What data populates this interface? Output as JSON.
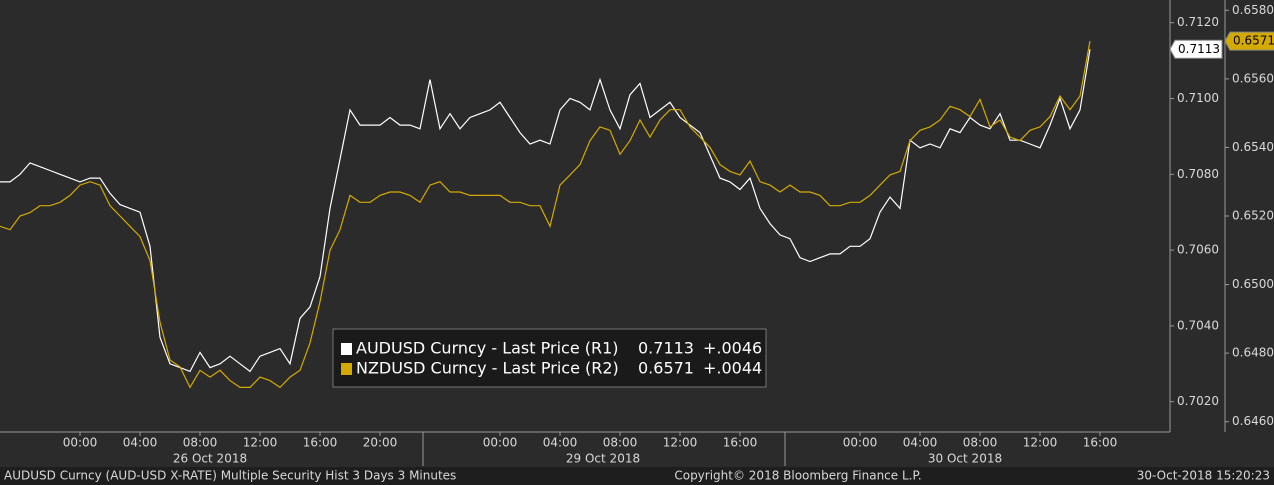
{
  "chart_data": {
    "type": "line",
    "categories": [
      null,
      null,
      null,
      null,
      null,
      null,
      null,
      null,
      "00:00",
      null,
      null,
      null,
      null,
      null,
      "04:00",
      null,
      null,
      null,
      null,
      null,
      "08:00",
      null,
      null,
      null,
      null,
      null,
      "12:00",
      null,
      null,
      null,
      null,
      null,
      "16:00",
      null,
      null,
      null,
      null,
      null,
      "20:00",
      null,
      null,
      null,
      null,
      null,
      null,
      null,
      null,
      null,
      null,
      null,
      "00:00",
      null,
      null,
      null,
      null,
      null,
      "04:00",
      null,
      null,
      null,
      null,
      null,
      "08:00",
      null,
      null,
      null,
      null,
      null,
      "12:00",
      null,
      null,
      null,
      null,
      null,
      "16:00",
      null,
      null,
      null,
      null,
      null,
      null,
      null,
      null,
      null,
      null,
      null,
      "00:00",
      null,
      null,
      null,
      null,
      null,
      "04:00",
      null,
      null,
      null,
      null,
      null,
      "08:00",
      null,
      null,
      null,
      null,
      null,
      "12:00",
      null,
      null,
      null,
      null,
      null,
      "16:00"
    ],
    "dates": [
      "26 Oct 2018",
      "29 Oct 2018",
      "30 Oct 2018"
    ],
    "series": [
      {
        "name": "AUDUSD Curncy - Last Price (R1)",
        "last": "0.7113",
        "change": "+.0046",
        "color": "#ffffff",
        "axis": "y",
        "values": [
          0.7078,
          0.7078,
          0.708,
          0.7083,
          0.7082,
          0.7081,
          0.708,
          0.7079,
          0.7078,
          0.7079,
          0.7079,
          0.7075,
          0.7072,
          0.7071,
          0.707,
          0.7061,
          0.7037,
          0.703,
          0.7029,
          0.7028,
          0.7033,
          0.7029,
          0.703,
          0.7032,
          0.703,
          0.7028,
          0.7032,
          0.7033,
          0.7034,
          0.703,
          0.7042,
          0.7045,
          0.7053,
          0.7071,
          0.7084,
          0.7097,
          0.7093,
          0.7093,
          0.7093,
          0.7095,
          0.7093,
          0.7093,
          0.7092,
          0.7105,
          0.7092,
          0.7096,
          0.7092,
          0.7095,
          0.7096,
          0.7097,
          0.7099,
          0.7095,
          0.7091,
          0.7088,
          0.7089,
          0.7088,
          0.7097,
          0.71,
          0.7099,
          0.7097,
          0.7105,
          0.7097,
          0.7092,
          0.7101,
          0.7104,
          0.7095,
          0.7097,
          0.7099,
          0.7095,
          0.7093,
          0.7091,
          0.7085,
          0.7079,
          0.7078,
          0.7076,
          0.7079,
          0.7071,
          0.7067,
          0.7064,
          0.7063,
          0.7058,
          0.7057,
          0.7058,
          0.7059,
          0.7059,
          0.7061,
          0.7061,
          0.7063,
          0.707,
          0.7074,
          0.7071,
          0.7089,
          0.7087,
          0.7088,
          0.7087,
          0.7092,
          0.7091,
          0.7095,
          0.7093,
          0.7092,
          0.7096,
          0.7089,
          0.7089,
          0.7088,
          0.7087,
          0.7093,
          0.71,
          0.7092,
          0.7097,
          0.7113,
          null
        ]
      },
      {
        "name": "NZDUSD Curncy - Last Price (R2)",
        "last": "0.6571",
        "change": "+.0044",
        "color": "#d4aa00",
        "axis": "y2",
        "values": [
          0.6517,
          0.6516,
          0.652,
          0.6521,
          0.6523,
          0.6523,
          0.6524,
          0.6526,
          0.6529,
          0.653,
          0.6529,
          0.6523,
          0.652,
          0.6517,
          0.6514,
          0.6507,
          0.6489,
          0.6478,
          0.6476,
          0.647,
          0.6475,
          0.6473,
          0.6475,
          0.6472,
          0.647,
          0.647,
          0.6473,
          0.6472,
          0.647,
          0.6473,
          0.6475,
          0.6483,
          0.6495,
          0.651,
          0.6516,
          0.6526,
          0.6524,
          0.6524,
          0.6526,
          0.6527,
          0.6527,
          0.6526,
          0.6524,
          0.6529,
          0.653,
          0.6527,
          0.6527,
          0.6526,
          0.6526,
          0.6526,
          0.6526,
          0.6524,
          0.6524,
          0.6523,
          0.6523,
          0.6517,
          0.6529,
          0.6532,
          0.6535,
          0.6542,
          0.6546,
          0.6545,
          0.6538,
          0.6542,
          0.6548,
          0.6543,
          0.6548,
          0.6551,
          0.6551,
          0.6546,
          0.6543,
          0.654,
          0.6535,
          0.6533,
          0.6532,
          0.6536,
          0.653,
          0.6529,
          0.6527,
          0.6529,
          0.6527,
          0.6527,
          0.6526,
          0.6523,
          0.6523,
          0.6524,
          0.6524,
          0.6526,
          0.6529,
          0.6532,
          0.6533,
          0.6542,
          0.6545,
          0.6546,
          0.6548,
          0.6552,
          0.6551,
          0.6549,
          0.6554,
          0.6546,
          0.6548,
          0.6543,
          0.6542,
          0.6545,
          0.6546,
          0.6549,
          0.6555,
          0.6551,
          0.6555,
          0.6571,
          null
        ]
      }
    ],
    "ylim": [
      0.7012,
      0.7126
    ],
    "yticks": [
      {
        "value": 0.702,
        "label": "0.7020"
      },
      {
        "value": 0.704,
        "label": "0.7040"
      },
      {
        "value": 0.706,
        "label": "0.7060"
      },
      {
        "value": 0.708,
        "label": "0.7080"
      },
      {
        "value": 0.71,
        "label": "0.7100"
      },
      {
        "value": 0.712,
        "label": "0.7120"
      }
    ],
    "y2lim": [
      0.6457,
      0.6583
    ],
    "y2ticks": [
      {
        "value": 0.646,
        "label": "0.6460"
      },
      {
        "value": 0.648,
        "label": "0.6480"
      },
      {
        "value": 0.65,
        "label": "0.6500"
      },
      {
        "value": 0.652,
        "label": "0.6520"
      },
      {
        "value": 0.654,
        "label": "0.6540"
      },
      {
        "value": 0.656,
        "label": "0.6560"
      },
      {
        "value": 0.658,
        "label": "0.6580"
      }
    ],
    "footer": {
      "left": "AUDUSD Curncy (AUD-USD X-RATE) Multiple Security Hist  3 Days 3 Minutes",
      "center": "Copyright© 2018 Bloomberg Finance L.P.",
      "right": "30-Oct-2018 15:20:23"
    }
  }
}
